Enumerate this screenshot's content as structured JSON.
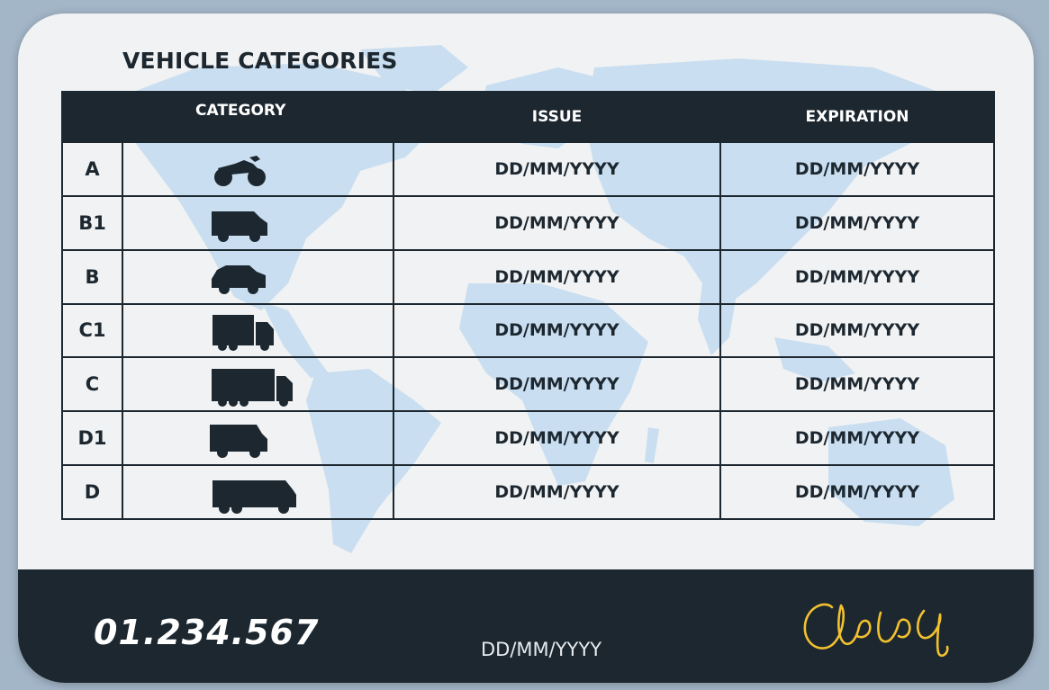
{
  "card": {
    "title": "VEHICLE CATEGORIES",
    "colors": {
      "card": "#f1f2f3",
      "dark": "#1c2730",
      "map": "#c9def0",
      "signature": "#f2c12e"
    }
  },
  "table": {
    "headers": {
      "category": "CATEGORY",
      "issue": "ISSUE",
      "expiration": "EXPIRATION"
    },
    "rows": [
      {
        "code": "A",
        "icon": "motorcycle-icon",
        "issue": "DD/MM/YYYY",
        "expiration": "DD/MM/YYYY"
      },
      {
        "code": "B1",
        "icon": "van-icon",
        "issue": "DD/MM/YYYY",
        "expiration": "DD/MM/YYYY"
      },
      {
        "code": "B",
        "icon": "car-icon",
        "issue": "DD/MM/YYYY",
        "expiration": "DD/MM/YYYY"
      },
      {
        "code": "C1",
        "icon": "light-truck-icon",
        "issue": "DD/MM/YYYY",
        "expiration": "DD/MM/YYYY"
      },
      {
        "code": "C",
        "icon": "truck-icon",
        "issue": "DD/MM/YYYY",
        "expiration": "DD/MM/YYYY"
      },
      {
        "code": "D1",
        "icon": "minibus-icon",
        "issue": "DD/MM/YYYY",
        "expiration": "DD/MM/YYYY"
      },
      {
        "code": "D",
        "icon": "bus-icon",
        "issue": "DD/MM/YYYY",
        "expiration": "DD/MM/YYYY"
      }
    ]
  },
  "footer": {
    "license_number": "01.234.567",
    "date": "DD/MM/YYYY",
    "signature_icon": "signature-icon"
  }
}
